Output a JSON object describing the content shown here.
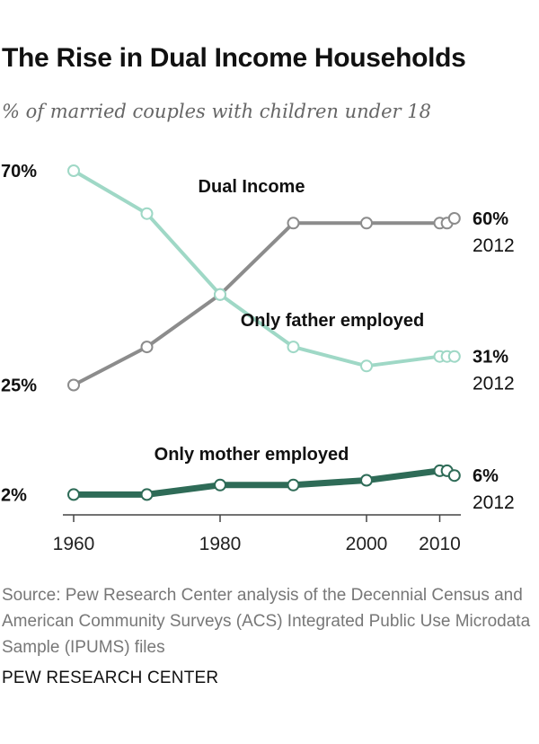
{
  "title": "The Rise in Dual Income Households",
  "subtitle": "% of married couples with children under 18",
  "source": "Source: Pew Research Center analysis of the Decennial Census and American Community Surveys (ACS) Integrated Public Use Microdata Sample (IPUMS) files",
  "footer": "PEW RESEARCH CENTER",
  "colors": {
    "dual": "#8c8c8c",
    "father": "#9fd8c6",
    "mother": "#2e6b57"
  },
  "chart_data": {
    "type": "line",
    "title": "The Rise in Dual Income Households",
    "subtitle": "% of married couples with children under 18",
    "x_ticks": [
      "1960",
      "1980",
      "2000",
      "2010"
    ],
    "xlim": [
      1960,
      2012
    ],
    "ylim": [
      0,
      72
    ],
    "grid": false,
    "legend": "none",
    "series": [
      {
        "name": "Dual Income",
        "color": "#8c8c8c",
        "x": [
          1960,
          1970,
          1980,
          1990,
          2000,
          2010,
          2011,
          2012
        ],
        "values": [
          25,
          33,
          44,
          59,
          59,
          59,
          59,
          60
        ],
        "start_label": "25%",
        "end_value_label": "60%",
        "end_year_label": "2012"
      },
      {
        "name": "Only father employed",
        "color": "#9fd8c6",
        "x": [
          1960,
          1970,
          1980,
          1990,
          2000,
          2010,
          2011,
          2012
        ],
        "values": [
          70,
          61,
          44,
          33,
          29,
          31,
          31,
          31
        ],
        "start_label": "70%",
        "end_value_label": "31%",
        "end_year_label": "2012"
      },
      {
        "name": "Only mother employed",
        "color": "#2e6b57",
        "x": [
          1960,
          1970,
          1980,
          1990,
          2000,
          2010,
          2011,
          2012
        ],
        "values": [
          2,
          2,
          4,
          4,
          5,
          7,
          7,
          6
        ],
        "start_label": "2%",
        "end_value_label": "6%",
        "end_year_label": "2012"
      }
    ]
  }
}
